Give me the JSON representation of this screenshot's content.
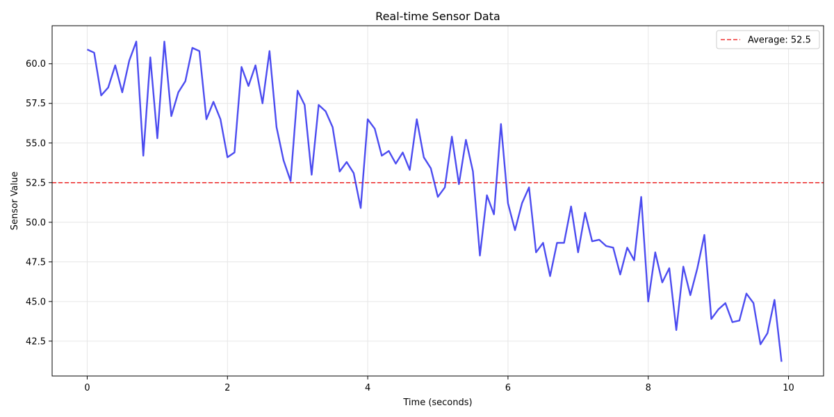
{
  "chart_data": {
    "type": "line",
    "title": "Real-time Sensor Data",
    "xlabel": "Time (seconds)",
    "ylabel": "Sensor Value",
    "xlim": [
      -0.5,
      10.5
    ],
    "ylim": [
      40.3,
      62.4
    ],
    "xticks": [
      0,
      2,
      4,
      6,
      8,
      10
    ],
    "yticks": [
      42.5,
      45.0,
      47.5,
      50.0,
      52.5,
      55.0,
      57.5,
      60.0
    ],
    "ytick_labels": [
      "42.5",
      "45.0",
      "47.5",
      "50.0",
      "52.5",
      "55.0",
      "57.5",
      "60.0"
    ],
    "grid": true,
    "legend_position": "top-right",
    "series": [
      {
        "color": "#3333ee",
        "x": [
          0,
          0.1,
          0.2,
          0.3,
          0.4,
          0.5,
          0.6,
          0.7,
          0.8,
          0.9,
          1.0,
          1.1,
          1.2,
          1.3,
          1.4,
          1.5,
          1.6,
          1.7,
          1.8,
          1.9,
          2.0,
          2.1,
          2.2,
          2.3,
          2.4,
          2.5,
          2.6,
          2.7,
          2.8,
          2.9,
          3.0,
          3.1,
          3.2,
          3.3,
          3.4,
          3.5,
          3.6,
          3.7,
          3.8,
          3.9,
          4.0,
          4.1,
          4.2,
          4.3,
          4.4,
          4.5,
          4.6,
          4.7,
          4.8,
          4.9,
          5.0,
          5.1,
          5.2,
          5.3,
          5.4,
          5.5,
          5.6,
          5.7,
          5.8,
          5.9,
          6.0,
          6.1,
          6.2,
          6.3,
          6.4,
          6.5,
          6.6,
          6.7,
          6.8,
          6.9,
          7.0,
          7.1,
          7.2,
          7.3,
          7.4,
          7.5,
          7.6,
          7.7,
          7.8,
          7.9,
          8.0,
          8.1,
          8.2,
          8.3,
          8.4,
          8.5,
          8.6,
          8.7,
          8.8,
          8.9,
          9.0,
          9.1,
          9.2,
          9.3,
          9.4,
          9.5,
          9.6,
          9.7,
          9.8,
          9.9
        ],
        "y": [
          60.9,
          60.7,
          58.0,
          58.5,
          59.9,
          58.2,
          60.2,
          61.4,
          54.2,
          60.4,
          55.3,
          61.4,
          56.7,
          58.2,
          58.9,
          61.0,
          60.8,
          56.5,
          57.6,
          56.5,
          54.1,
          54.4,
          59.8,
          58.6,
          59.9,
          57.5,
          60.8,
          56.0,
          53.9,
          52.6,
          58.3,
          57.4,
          53.0,
          57.4,
          57.0,
          56.0,
          53.2,
          53.8,
          53.1,
          50.9,
          56.5,
          55.9,
          54.2,
          54.5,
          53.7,
          54.4,
          53.3,
          56.5,
          54.1,
          53.4,
          51.6,
          52.2,
          55.4,
          52.4,
          55.2,
          53.2,
          47.9,
          51.7,
          50.5,
          56.2,
          51.2,
          49.5,
          51.2,
          52.2,
          48.1,
          48.7,
          46.6,
          48.7,
          48.7,
          51.0,
          48.1,
          50.6,
          48.8,
          48.9,
          48.5,
          48.4,
          46.7,
          48.4,
          47.6,
          51.6,
          45.0,
          48.1,
          46.2,
          47.1,
          43.2,
          47.2,
          45.4,
          47.1,
          49.2,
          43.9,
          44.5,
          44.9,
          43.7,
          43.8,
          45.5,
          44.9,
          42.3,
          43.0,
          45.1,
          41.2
        ]
      }
    ],
    "reference_line": {
      "value": 52.5,
      "label": "Average: 52.5",
      "color": "#ee3333",
      "style": "dashed"
    }
  }
}
